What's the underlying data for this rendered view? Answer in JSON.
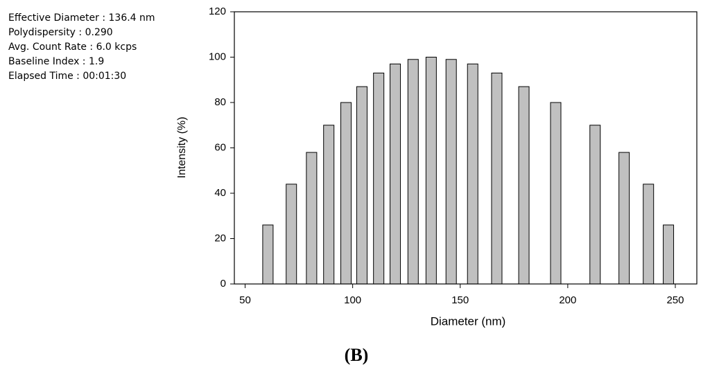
{
  "chart_data": {
    "type": "bar",
    "annotations": [
      "Effective Diameter : 136.4 nm",
      "Polydispersity : 0.290",
      "Avg. Count Rate : 6.0 kcps",
      "Baseline Index : 1.9",
      "Elapsed Time : 00:01:30"
    ],
    "x_label": "Diameter (nm)",
    "y_label": "Intensity (%)",
    "caption": "(B)",
    "x": [
      60.6,
      71.5,
      80.9,
      88.9,
      96.9,
      104.3,
      112.1,
      119.8,
      128.1,
      136.5,
      145.8,
      155.8,
      167.0,
      179.6,
      194.4,
      212.7,
      226.2,
      237.5,
      246.8
    ],
    "values": [
      26,
      44,
      58,
      70,
      80,
      87,
      93,
      97,
      99,
      100,
      99,
      97,
      93,
      87,
      80,
      70,
      58,
      44,
      26
    ],
    "color": "#c0c0c0",
    "xlim": [
      45,
      260
    ],
    "xticks": [
      50,
      100,
      150,
      200,
      250
    ],
    "ylim": [
      0,
      120
    ],
    "yticks": [
      0,
      20,
      40,
      60,
      80,
      100,
      120
    ]
  }
}
